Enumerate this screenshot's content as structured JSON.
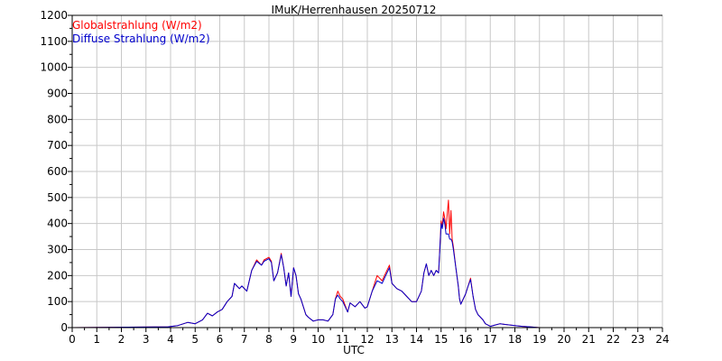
{
  "chart_data": {
    "type": "line",
    "title": "IMuK/Herrenhausen 20250712",
    "xlabel": "UTC",
    "ylabel": "",
    "xlim": [
      0,
      24
    ],
    "ylim": [
      0,
      1200
    ],
    "grid": true,
    "legend_placement": "top-left",
    "x_ticks": [
      "0",
      "1",
      "2",
      "3",
      "4",
      "5",
      "6",
      "7",
      "8",
      "9",
      "10",
      "11",
      "12",
      "13",
      "14",
      "15",
      "16",
      "17",
      "18",
      "19",
      "20",
      "21",
      "22",
      "23",
      "24"
    ],
    "y_ticks": [
      "0",
      "100",
      "200",
      "300",
      "400",
      "500",
      "600",
      "700",
      "800",
      "900",
      "1000",
      "1100",
      "1200"
    ],
    "series": [
      {
        "name": "Globalstrahlung (W/m2)",
        "color": "#ff0000",
        "x": [
          0,
          3.9,
          4.3,
          4.7,
          5.0,
          5.3,
          5.5,
          5.7,
          5.9,
          6.1,
          6.3,
          6.5,
          6.6,
          6.8,
          6.9,
          7.1,
          7.3,
          7.5,
          7.7,
          7.8,
          8.0,
          8.1,
          8.2,
          8.35,
          8.5,
          8.6,
          8.7,
          8.8,
          8.9,
          9.0,
          9.1,
          9.2,
          9.3,
          9.5,
          9.6,
          9.8,
          10.0,
          10.2,
          10.4,
          10.6,
          10.7,
          10.8,
          10.9,
          11.0,
          11.2,
          11.3,
          11.5,
          11.7,
          11.9,
          12.0,
          12.2,
          12.4,
          12.6,
          12.75,
          12.9,
          13.0,
          13.2,
          13.4,
          13.6,
          13.8,
          14.0,
          14.2,
          14.3,
          14.4,
          14.5,
          14.6,
          14.7,
          14.8,
          14.9,
          15.0,
          15.05,
          15.1,
          15.15,
          15.2,
          15.3,
          15.35,
          15.4,
          15.45,
          15.5,
          15.6,
          15.7,
          15.75,
          15.8,
          16.0,
          16.1,
          16.2,
          16.3,
          16.4,
          16.5,
          16.6,
          16.7,
          16.8,
          17.0,
          17.2,
          17.4,
          17.6,
          17.8,
          18.0,
          18.3,
          18.6,
          19.0,
          19.4,
          24
        ],
        "y": [
          0,
          3,
          8,
          20,
          15,
          30,
          55,
          45,
          60,
          70,
          100,
          120,
          170,
          150,
          160,
          140,
          220,
          260,
          240,
          260,
          270,
          255,
          180,
          210,
          285,
          230,
          160,
          210,
          120,
          230,
          200,
          130,
          110,
          50,
          40,
          25,
          30,
          30,
          25,
          50,
          110,
          140,
          120,
          110,
          60,
          95,
          80,
          100,
          75,
          80,
          140,
          200,
          180,
          210,
          240,
          170,
          150,
          140,
          120,
          100,
          100,
          140,
          210,
          245,
          200,
          220,
          200,
          220,
          210,
          410,
          390,
          445,
          420,
          380,
          490,
          360,
          450,
          340,
          310,
          230,
          160,
          110,
          90,
          130,
          160,
          190,
          120,
          70,
          50,
          40,
          30,
          15,
          5,
          10,
          15,
          12,
          10,
          8,
          5,
          3,
          0,
          0,
          0
        ]
      },
      {
        "name": "Diffuse Strahlung (W/m2)",
        "color": "#0000cc",
        "x": [
          0,
          3.9,
          4.3,
          4.7,
          5.0,
          5.3,
          5.5,
          5.7,
          5.9,
          6.1,
          6.3,
          6.5,
          6.6,
          6.8,
          6.9,
          7.1,
          7.3,
          7.5,
          7.7,
          7.8,
          8.0,
          8.1,
          8.2,
          8.35,
          8.5,
          8.6,
          8.7,
          8.8,
          8.9,
          9.0,
          9.1,
          9.2,
          9.3,
          9.5,
          9.6,
          9.8,
          10.0,
          10.2,
          10.4,
          10.6,
          10.7,
          10.8,
          10.9,
          11.0,
          11.2,
          11.3,
          11.5,
          11.7,
          11.9,
          12.0,
          12.2,
          12.4,
          12.6,
          12.75,
          12.9,
          13.0,
          13.2,
          13.4,
          13.6,
          13.8,
          14.0,
          14.2,
          14.3,
          14.4,
          14.5,
          14.6,
          14.7,
          14.8,
          14.9,
          15.0,
          15.05,
          15.1,
          15.15,
          15.2,
          15.3,
          15.35,
          15.4,
          15.45,
          15.5,
          15.6,
          15.7,
          15.75,
          15.8,
          16.0,
          16.1,
          16.2,
          16.3,
          16.4,
          16.5,
          16.6,
          16.7,
          16.8,
          17.0,
          17.2,
          17.4,
          17.6,
          17.8,
          18.0,
          18.3,
          18.6,
          19.0,
          19.4,
          24
        ],
        "y": [
          0,
          3,
          8,
          20,
          15,
          30,
          55,
          45,
          60,
          70,
          100,
          120,
          170,
          150,
          160,
          140,
          220,
          255,
          240,
          255,
          265,
          250,
          180,
          210,
          280,
          230,
          160,
          210,
          120,
          230,
          200,
          130,
          110,
          50,
          40,
          25,
          30,
          30,
          25,
          50,
          110,
          125,
          110,
          100,
          60,
          95,
          80,
          100,
          75,
          80,
          140,
          180,
          170,
          200,
          230,
          170,
          150,
          140,
          120,
          100,
          100,
          140,
          210,
          245,
          200,
          220,
          200,
          220,
          210,
          400,
          380,
          420,
          400,
          360,
          360,
          340,
          340,
          330,
          300,
          230,
          160,
          110,
          90,
          130,
          160,
          185,
          120,
          70,
          50,
          40,
          30,
          15,
          5,
          10,
          15,
          12,
          10,
          8,
          5,
          3,
          0,
          0,
          0
        ]
      }
    ]
  }
}
